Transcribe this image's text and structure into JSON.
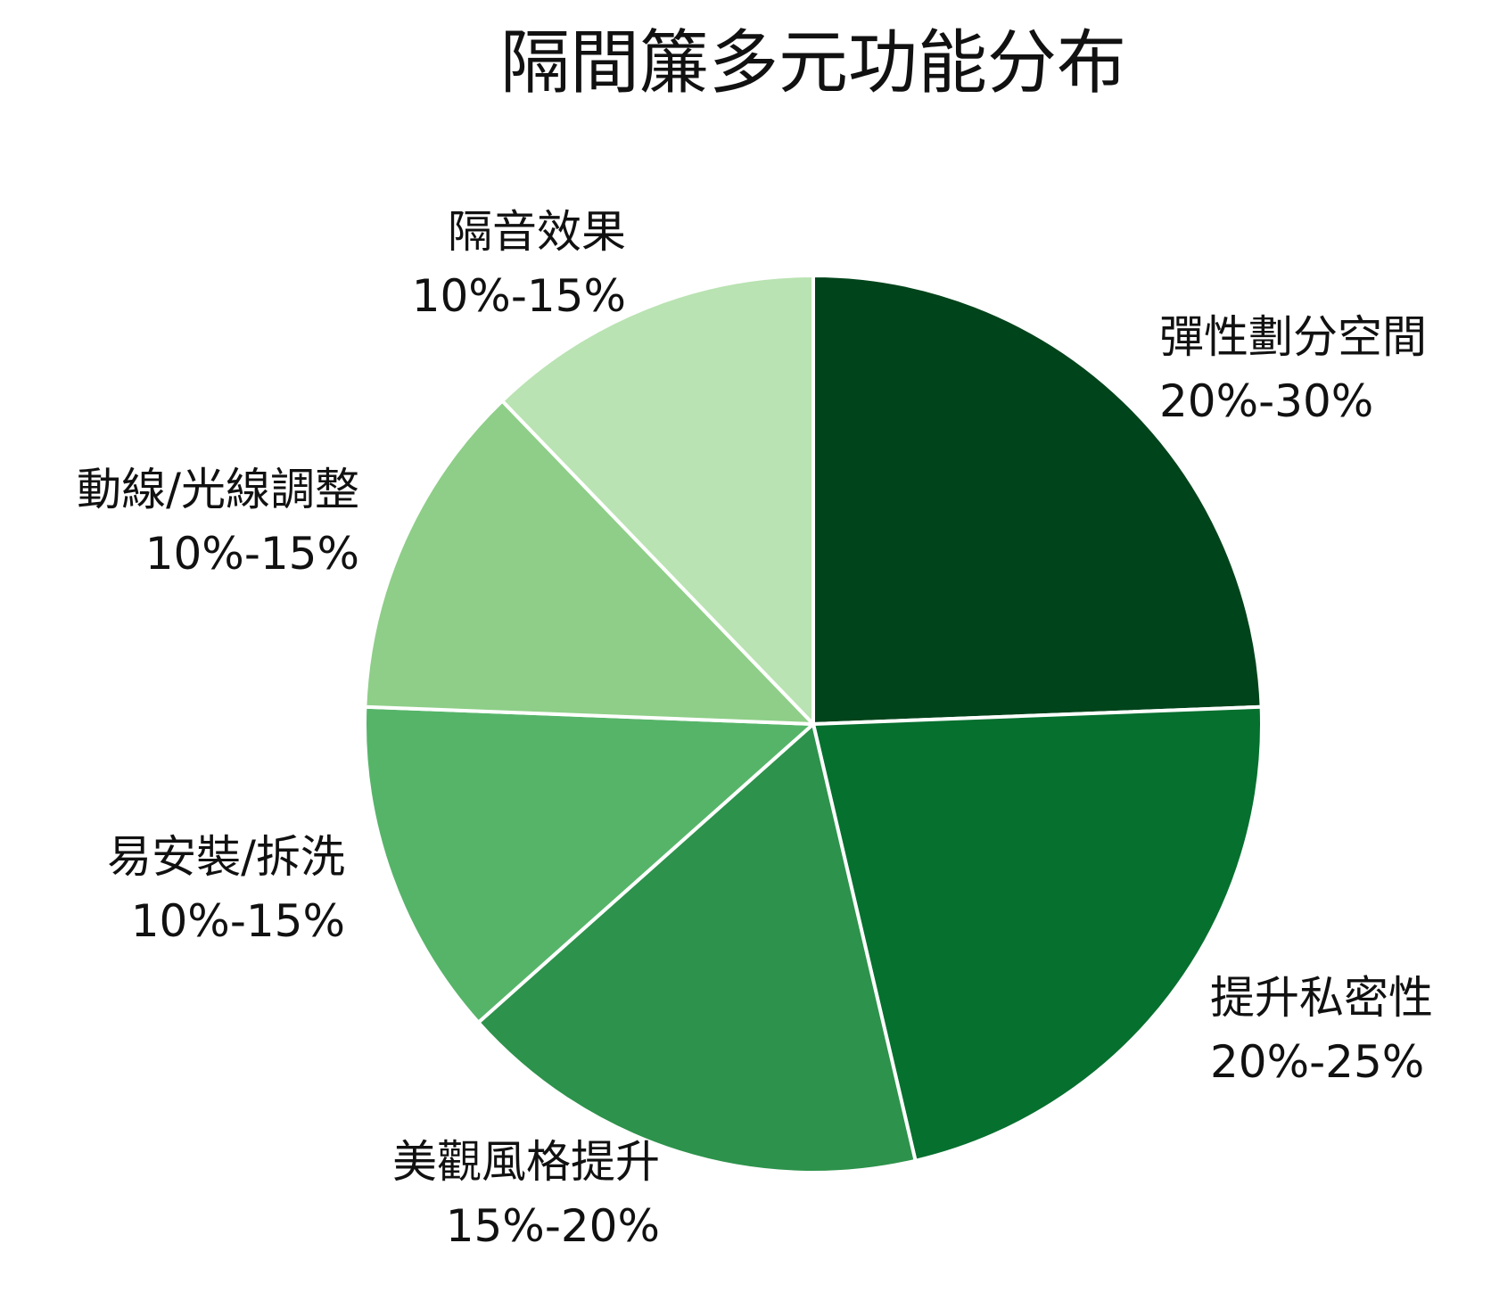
{
  "chart_data": {
    "type": "pie",
    "title": "隔間簾多元功能分布",
    "slices": [
      {
        "name": "彈性劃分空間",
        "range_label": "20%-30%",
        "value": 25,
        "color": "#00441b"
      },
      {
        "name": "提升私密性",
        "range_label": "20%-25%",
        "value": 22.5,
        "color": "#06702f"
      },
      {
        "name": "美觀風格提升",
        "range_label": "15%-20%",
        "value": 17.5,
        "color": "#2d924b"
      },
      {
        "name": "易安裝/拆洗",
        "range_label": "10%-15%",
        "value": 12.5,
        "color": "#56b469"
      },
      {
        "name": "動線/光線調整",
        "range_label": "10%-15%",
        "value": 12.5,
        "color": "#8ece88"
      },
      {
        "name": "隔音效果",
        "range_label": "10%-15%",
        "value": 12.5,
        "color": "#b9e3b2"
      }
    ],
    "start_angle": "12 o'clock",
    "direction": "clockwise",
    "slice_border_color": "#ffffff"
  }
}
